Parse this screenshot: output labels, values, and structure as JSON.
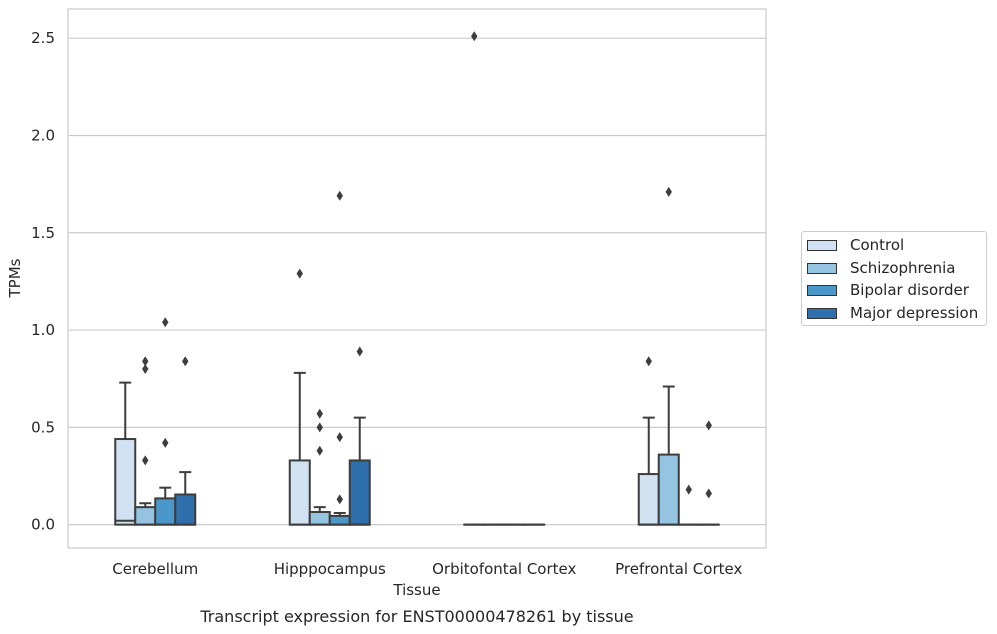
{
  "chart_data": {
    "type": "box",
    "xlabel": "Tissue",
    "ylabel": "TPMs",
    "caption": "Transcript expression for ENST00000478261 by tissue",
    "ylim": [
      -0.12,
      2.65
    ],
    "yticks": [
      "0.0",
      "0.5",
      "1.0",
      "1.5",
      "2.0",
      "2.5"
    ],
    "grid": "horizontal",
    "legend_position": "right",
    "categories": [
      "Cerebellum",
      "Hipppocampus",
      "Orbitofontal Cortex",
      "Prefrontal Cortex"
    ],
    "series": [
      {
        "name": "Control",
        "color": "#d0e1f2",
        "boxes": [
          {
            "q1": 0.0,
            "median": 0.02,
            "q3": 0.44,
            "whislo": 0.0,
            "whishi": 0.73,
            "fliers": []
          },
          {
            "q1": 0.0,
            "median": 0.0,
            "q3": 0.33,
            "whislo": 0.0,
            "whishi": 0.78,
            "fliers": [
              1.29
            ]
          },
          {
            "q1": 0.0,
            "median": 0.0,
            "q3": 0.0,
            "whislo": 0.0,
            "whishi": 0.0,
            "fliers": [
              2.51
            ]
          },
          {
            "q1": 0.0,
            "median": 0.0,
            "q3": 0.26,
            "whislo": 0.0,
            "whishi": 0.55,
            "fliers": [
              0.84
            ]
          }
        ]
      },
      {
        "name": "Schizophrenia",
        "color": "#94c4df",
        "boxes": [
          {
            "q1": 0.0,
            "median": 0.0,
            "q3": 0.09,
            "whislo": 0.0,
            "whishi": 0.11,
            "fliers": [
              0.33,
              0.8,
              0.84
            ]
          },
          {
            "q1": 0.0,
            "median": 0.0,
            "q3": 0.065,
            "whislo": 0.0,
            "whishi": 0.09,
            "fliers": [
              0.38,
              0.5,
              0.57
            ]
          },
          {
            "q1": 0.0,
            "median": 0.0,
            "q3": 0.0,
            "whislo": 0.0,
            "whishi": 0.0,
            "fliers": []
          },
          {
            "q1": 0.0,
            "median": 0.0,
            "q3": 0.36,
            "whislo": 0.0,
            "whishi": 0.71,
            "fliers": [
              1.71
            ]
          }
        ]
      },
      {
        "name": "Bipolar disorder",
        "color": "#4a98c9",
        "boxes": [
          {
            "q1": 0.0,
            "median": 0.0,
            "q3": 0.135,
            "whislo": 0.0,
            "whishi": 0.19,
            "fliers": [
              0.42,
              1.04
            ]
          },
          {
            "q1": 0.0,
            "median": 0.0,
            "q3": 0.045,
            "whislo": 0.0,
            "whishi": 0.06,
            "fliers": [
              0.13,
              0.45,
              1.69
            ]
          },
          {
            "q1": 0.0,
            "median": 0.0,
            "q3": 0.0,
            "whislo": 0.0,
            "whishi": 0.0,
            "fliers": []
          },
          {
            "q1": 0.0,
            "median": 0.0,
            "q3": 0.0,
            "whislo": 0.0,
            "whishi": 0.0,
            "fliers": [
              0.18
            ]
          }
        ]
      },
      {
        "name": "Major depression",
        "color": "#2e6fac",
        "boxes": [
          {
            "q1": 0.0,
            "median": 0.0,
            "q3": 0.155,
            "whislo": 0.0,
            "whishi": 0.27,
            "fliers": [
              0.84
            ]
          },
          {
            "q1": 0.0,
            "median": 0.0,
            "q3": 0.33,
            "whislo": 0.0,
            "whishi": 0.55,
            "fliers": [
              0.89
            ]
          },
          {
            "q1": 0.0,
            "median": 0.0,
            "q3": 0.0,
            "whislo": 0.0,
            "whishi": 0.0,
            "fliers": []
          },
          {
            "q1": 0.0,
            "median": 0.0,
            "q3": 0.0,
            "whislo": 0.0,
            "whishi": 0.0,
            "fliers": [
              0.16,
              0.51
            ]
          }
        ]
      }
    ]
  }
}
